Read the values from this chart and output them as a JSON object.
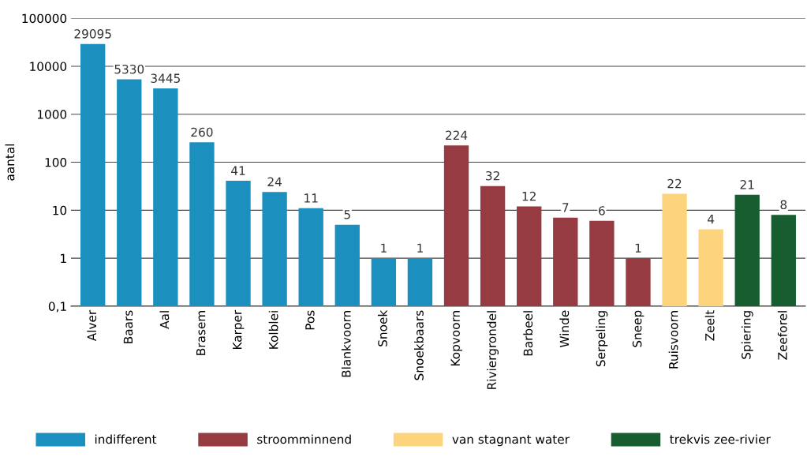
{
  "chart_data": {
    "type": "bar",
    "ylabel": "aantal",
    "categories": [
      "Alver",
      "Baars",
      "Aal",
      "Brasem",
      "Karper",
      "Kolblei",
      "Pos",
      "Blankvoorn",
      "Snoek",
      "Snoekbaars",
      "Kopvoorn",
      "Riviergrondel",
      "Barbeel",
      "Winde",
      "Serpeling",
      "Sneep",
      "Ruisvoorn",
      "Zeelt",
      "Spiering",
      "Zeeforel"
    ],
    "series": [
      {
        "name": "indifferent",
        "color": "#1b8fbe",
        "values": [
          29095,
          5330,
          3445,
          260,
          41,
          24,
          11,
          5,
          1,
          1,
          null,
          null,
          null,
          null,
          null,
          null,
          null,
          null,
          null,
          null
        ]
      },
      {
        "name": "stroomminnend",
        "color": "#953b41",
        "values": [
          null,
          null,
          null,
          null,
          null,
          null,
          null,
          null,
          null,
          null,
          224,
          32,
          12,
          7,
          6,
          1,
          null,
          null,
          null,
          null
        ]
      },
      {
        "name": "van stagnant water",
        "color": "#fdd47e",
        "values": [
          null,
          null,
          null,
          null,
          null,
          null,
          null,
          null,
          null,
          null,
          null,
          null,
          null,
          null,
          null,
          null,
          22,
          4,
          null,
          null
        ]
      },
      {
        "name": "trekvis zee-rivier",
        "color": "#175d30",
        "values": [
          null,
          null,
          null,
          null,
          null,
          null,
          null,
          null,
          null,
          null,
          null,
          null,
          null,
          null,
          null,
          null,
          null,
          null,
          21,
          8
        ]
      }
    ],
    "log": "y",
    "ylim": [
      0.1,
      100000
    ],
    "yticks": [
      {
        "value": 0.1,
        "label": "0,1"
      },
      1,
      10,
      100,
      1000,
      10000,
      100000
    ],
    "grid": "y",
    "legend": "bottom",
    "data_labels": true
  }
}
